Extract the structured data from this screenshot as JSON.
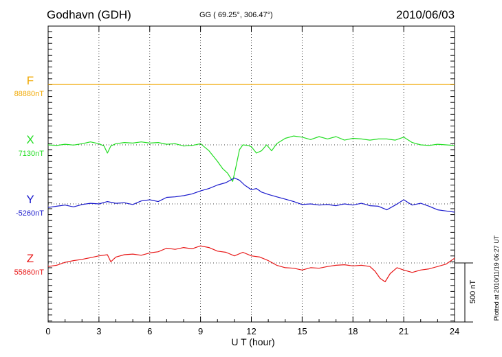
{
  "header": {
    "station": "Godhavn (GDH)",
    "coords": "GG ( 69.25°, 306.47°)",
    "date": "2010/06/03"
  },
  "footer": {
    "plotted": "Plotted at 2010/11/19 06:27 UT"
  },
  "chart_data": {
    "type": "line",
    "title": "Godhavn (GDH)",
    "xlabel": "U T (hour)",
    "xlim": [
      0,
      24
    ],
    "xticks": [
      "0",
      "3",
      "6",
      "9",
      "12",
      "15",
      "18",
      "21",
      "24"
    ],
    "scale_bar": "500 nT",
    "grid": true,
    "colors": {
      "F": "#f0a800",
      "X": "#22dd22",
      "Y": "#1818cc",
      "Z": "#e81818"
    },
    "series": [
      {
        "name": "F",
        "baseline": "88880nT",
        "baseline_value": 88880,
        "x": [
          0,
          24
        ],
        "y": [
          88880,
          88880
        ]
      },
      {
        "name": "X",
        "baseline": "7130nT",
        "baseline_value": 7130,
        "x": [
          0,
          0.5,
          1,
          1.5,
          2,
          2.5,
          3,
          3.3,
          3.5,
          3.7,
          4,
          4.5,
          5,
          5.5,
          6,
          6.5,
          7,
          7.5,
          8,
          8.5,
          9,
          9.5,
          10,
          10.3,
          10.6,
          10.9,
          11.1,
          11.3,
          11.5,
          11.8,
          12,
          12.3,
          12.6,
          12.9,
          13.2,
          13.5,
          14,
          14.5,
          15,
          15.5,
          16,
          16.5,
          17,
          17.5,
          18,
          18.5,
          19,
          19.5,
          20,
          20.5,
          21,
          21.5,
          22,
          22.5,
          23,
          23.5,
          24
        ],
        "y": [
          7130,
          7125,
          7135,
          7128,
          7140,
          7155,
          7140,
          7120,
          7060,
          7120,
          7140,
          7150,
          7145,
          7155,
          7145,
          7150,
          7135,
          7140,
          7120,
          7125,
          7140,
          7080,
          6990,
          6930,
          6890,
          6820,
          6950,
          7090,
          7130,
          7125,
          7115,
          7060,
          7080,
          7130,
          7080,
          7140,
          7185,
          7205,
          7195,
          7175,
          7200,
          7180,
          7200,
          7170,
          7185,
          7180,
          7170,
          7180,
          7180,
          7170,
          7195,
          7150,
          7130,
          7125,
          7135,
          7130,
          7125
        ]
      },
      {
        "name": "Y",
        "baseline": "-5260nT",
        "baseline_value": -5260,
        "x": [
          0,
          0.5,
          1,
          1.5,
          2,
          2.5,
          3,
          3.5,
          4,
          4.5,
          5,
          5.5,
          6,
          6.5,
          7,
          7.5,
          8,
          8.5,
          9,
          9.5,
          10,
          10.5,
          11,
          11.3,
          11.6,
          12,
          12.3,
          12.6,
          13,
          13.5,
          14,
          14.5,
          15,
          15.5,
          16,
          16.5,
          17,
          17.5,
          18,
          18.5,
          19,
          19.5,
          20,
          20.5,
          21,
          21.5,
          22,
          22.5,
          23,
          23.5,
          24
        ],
        "y": [
          -5290,
          -5280,
          -5270,
          -5285,
          -5265,
          -5255,
          -5260,
          -5240,
          -5255,
          -5250,
          -5265,
          -5235,
          -5225,
          -5240,
          -5205,
          -5200,
          -5190,
          -5175,
          -5150,
          -5130,
          -5100,
          -5080,
          -5040,
          -5060,
          -5100,
          -5140,
          -5130,
          -5160,
          -5180,
          -5200,
          -5220,
          -5240,
          -5265,
          -5260,
          -5270,
          -5265,
          -5275,
          -5260,
          -5270,
          -5255,
          -5275,
          -5280,
          -5310,
          -5270,
          -5225,
          -5270,
          -5255,
          -5280,
          -5310,
          -5320,
          -5330
        ]
      },
      {
        "name": "Z",
        "baseline": "55860nT",
        "baseline_value": 55860,
        "x": [
          0,
          0.5,
          1,
          1.5,
          2,
          2.5,
          3,
          3.5,
          3.7,
          4,
          4.5,
          5,
          5.5,
          6,
          6.5,
          7,
          7.5,
          8,
          8.5,
          9,
          9.5,
          10,
          10.5,
          11,
          11.5,
          12,
          12.5,
          13,
          13.5,
          14,
          14.5,
          15,
          15.5,
          16,
          16.5,
          17,
          17.5,
          18,
          18.5,
          19,
          19.3,
          19.6,
          19.9,
          20.2,
          20.6,
          21,
          21.5,
          22,
          22.5,
          23,
          23.5,
          24
        ],
        "y": [
          55830,
          55840,
          55865,
          55880,
          55890,
          55905,
          55920,
          55930,
          55870,
          55910,
          55930,
          55935,
          55925,
          55945,
          55955,
          55985,
          55975,
          55990,
          55980,
          56005,
          55990,
          55960,
          55950,
          55920,
          55950,
          55920,
          55910,
          55880,
          55840,
          55820,
          55815,
          55800,
          55820,
          55815,
          55830,
          55840,
          55845,
          55835,
          55840,
          55830,
          55790,
          55730,
          55700,
          55770,
          55820,
          55800,
          55780,
          55800,
          55810,
          55830,
          55850,
          55900
        ]
      }
    ]
  }
}
